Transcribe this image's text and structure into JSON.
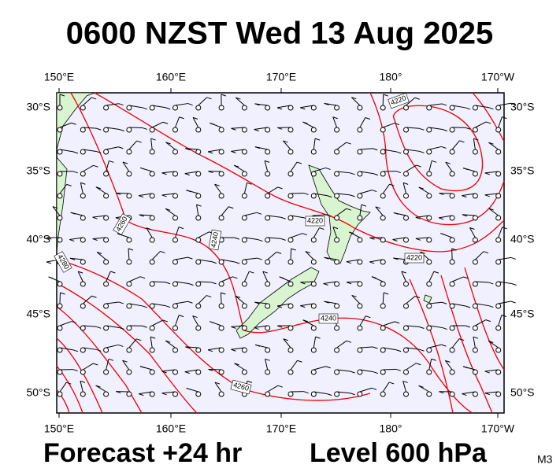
{
  "title": "0600 NZST Wed 13 Aug 2025",
  "footer": {
    "forecast": "Forecast +24 hr",
    "level": "Level 600 hPa",
    "model": "M3"
  },
  "axes": {
    "longitudes": [
      "150°E",
      "160°E",
      "170°E",
      "180°",
      "170°W"
    ],
    "latitudes": [
      "30°S",
      "35°S",
      "40°S",
      "45°S",
      "50°S"
    ]
  },
  "contour_labels": [
    "4220",
    "4220",
    "4220",
    "4240",
    "4240",
    "4260",
    "4280",
    "4260"
  ]
}
